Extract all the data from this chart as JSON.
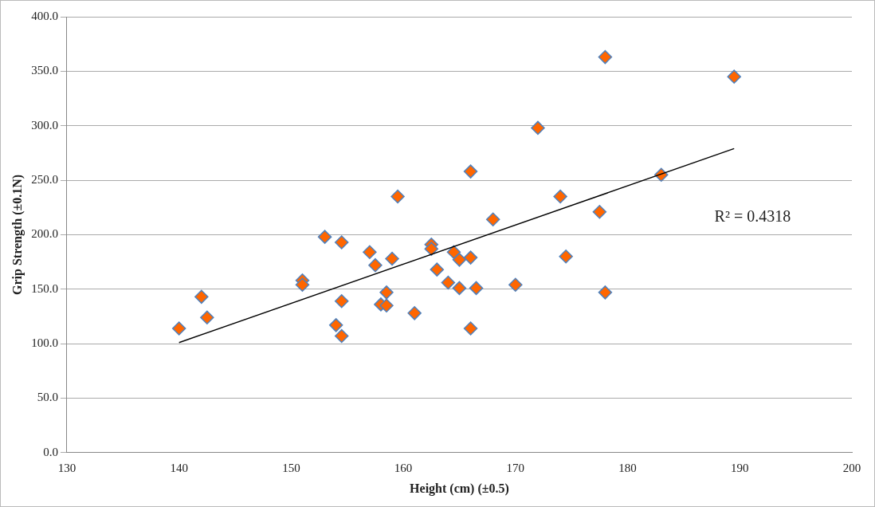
{
  "chart_data": {
    "type": "scatter",
    "xlabel": "Height (cm) (±0.5)",
    "ylabel": "Grip Strength (±0.1N)",
    "annotations": [
      "R² = 0.4318"
    ],
    "xlim": [
      130,
      200
    ],
    "xticks": [
      130,
      140,
      150,
      160,
      170,
      180,
      190,
      200
    ],
    "ylim": [
      0,
      400
    ],
    "yticks": [
      {
        "value": 0,
        "label": "0.0"
      },
      {
        "value": 50,
        "label": "50.0"
      },
      {
        "value": 100,
        "label": "100.0"
      },
      {
        "value": 150,
        "label": "150.0"
      },
      {
        "value": 200,
        "label": "200.0"
      },
      {
        "value": 250,
        "label": "250.0"
      },
      {
        "value": 300,
        "label": "300.0"
      },
      {
        "value": 350,
        "label": "350.0"
      },
      {
        "value": 400,
        "label": "400.0"
      }
    ],
    "grid": "y",
    "legend": false,
    "marker": "diamond",
    "series": [
      {
        "color": "#ff6600",
        "x": [
          140,
          142,
          142.5,
          151,
          151,
          153,
          154.5,
          154.5,
          154,
          154.5,
          157,
          157.5,
          159,
          159.5,
          158.5,
          158,
          158.5,
          161,
          162.5,
          162.5,
          163,
          164,
          164.5,
          165,
          165,
          166,
          166,
          166,
          166.5,
          168,
          170,
          172,
          174,
          174.5,
          177.5,
          178,
          178,
          183,
          189.5
        ],
        "values": [
          114,
          143,
          124,
          158,
          154,
          198,
          193,
          139,
          117,
          107,
          184,
          172,
          178,
          235,
          147,
          136,
          135,
          128,
          191,
          187,
          168,
          156,
          184,
          177,
          151,
          258,
          179,
          114,
          151,
          214,
          154,
          298,
          235,
          180,
          221,
          147,
          363,
          255,
          345
        ]
      },
      {
        "type": "line",
        "color": "#000000",
        "marker": "none",
        "x": [
          140,
          189.5
        ],
        "values": [
          101,
          279
        ]
      }
    ]
  }
}
